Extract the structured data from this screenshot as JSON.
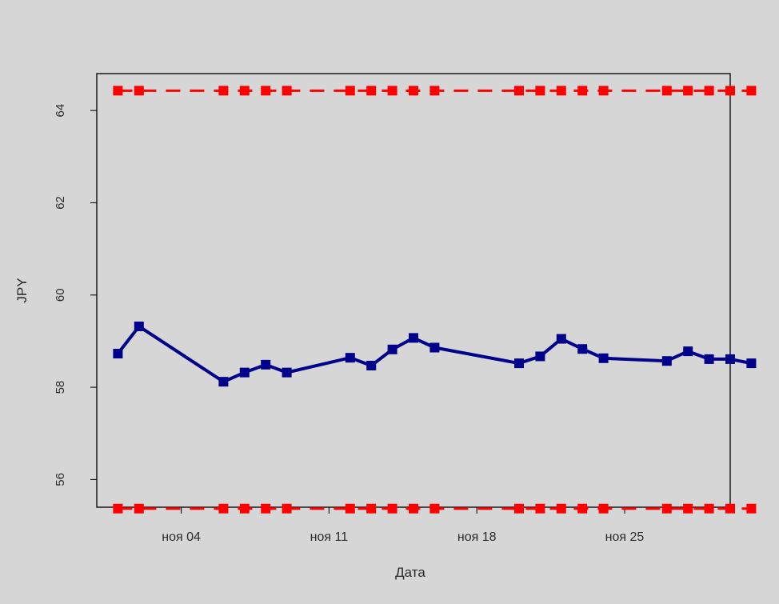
{
  "chart_data": {
    "type": "line",
    "xlabel": "Дата",
    "ylabel": "JPY",
    "ylim": [
      55.4,
      64.8
    ],
    "xlim": [
      "2012-10-31",
      "2012-11-30"
    ],
    "yticks": [
      56,
      58,
      60,
      62,
      64
    ],
    "xticks": [
      {
        "date": "2012-11-04",
        "label": "ноя 04"
      },
      {
        "date": "2012-11-11",
        "label": "ноя 11"
      },
      {
        "date": "2012-11-18",
        "label": "ноя 18"
      },
      {
        "date": "2012-11-25",
        "label": "ноя 25"
      }
    ],
    "series": [
      {
        "style": "solid",
        "color": "#00008b",
        "x": [
          "2012-11-01",
          "2012-11-02",
          "2012-11-06",
          "2012-11-07",
          "2012-11-08",
          "2012-11-09",
          "2012-11-12",
          "2012-11-13",
          "2012-11-14",
          "2012-11-15",
          "2012-11-16",
          "2012-11-20",
          "2012-11-21",
          "2012-11-22",
          "2012-11-23",
          "2012-11-24",
          "2012-11-27",
          "2012-11-28",
          "2012-11-29",
          "2012-11-30",
          "2012-12-01"
        ],
        "values": [
          58.73,
          59.32,
          58.12,
          58.32,
          58.49,
          58.32,
          58.64,
          58.47,
          58.82,
          59.07,
          58.86,
          58.52,
          58.67,
          59.05,
          58.83,
          58.63,
          58.57,
          58.78,
          58.61,
          58.61,
          58.52
        ]
      },
      {
        "style": "dashed",
        "color": "#ff0000",
        "x": [
          "2012-11-01",
          "2012-11-02",
          "2012-11-06",
          "2012-11-07",
          "2012-11-08",
          "2012-11-09",
          "2012-11-12",
          "2012-11-13",
          "2012-11-14",
          "2012-11-15",
          "2012-11-16",
          "2012-11-20",
          "2012-11-21",
          "2012-11-22",
          "2012-11-23",
          "2012-11-24",
          "2012-11-27",
          "2012-11-28",
          "2012-11-29",
          "2012-11-30",
          "2012-12-01"
        ],
        "values": [
          64.43,
          64.43,
          64.43,
          64.43,
          64.43,
          64.43,
          64.43,
          64.43,
          64.43,
          64.43,
          64.43,
          64.43,
          64.43,
          64.43,
          64.43,
          64.43,
          64.43,
          64.43,
          64.43,
          64.43,
          64.43
        ]
      },
      {
        "style": "dashed",
        "color": "#ff0000",
        "x": [
          "2012-11-01",
          "2012-11-02",
          "2012-11-06",
          "2012-11-07",
          "2012-11-08",
          "2012-11-09",
          "2012-11-12",
          "2012-11-13",
          "2012-11-14",
          "2012-11-15",
          "2012-11-16",
          "2012-11-20",
          "2012-11-21",
          "2012-11-22",
          "2012-11-23",
          "2012-11-24",
          "2012-11-27",
          "2012-11-28",
          "2012-11-29",
          "2012-11-30",
          "2012-12-01"
        ],
        "values": [
          55.37,
          55.37,
          55.37,
          55.37,
          55.37,
          55.37,
          55.37,
          55.37,
          55.37,
          55.37,
          55.37,
          55.37,
          55.37,
          55.37,
          55.37,
          55.37,
          55.37,
          55.37,
          55.37,
          55.37,
          55.37
        ]
      }
    ]
  }
}
